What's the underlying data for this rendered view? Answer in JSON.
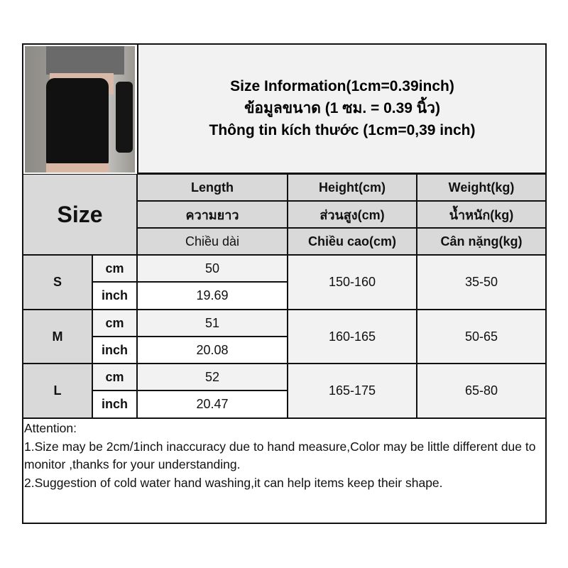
{
  "title": {
    "line1": "Size Information(1cm=0.39inch)",
    "line2": "ข้อมูลขนาด (1 ซม. = 0.39 นิ้ว)",
    "line3": "Thông tin kích thước (1cm=0,39 inch)"
  },
  "header": {
    "size": "Size",
    "columns": [
      {
        "en": "Length",
        "th": "ความยาว",
        "vi": "Chiều dài"
      },
      {
        "en": "Height(cm)",
        "th": "ส่วนสูง(cm)",
        "vi": "Chiều cao(cm)"
      },
      {
        "en": "Weight(kg)",
        "th": "น้ำหนัก(kg)",
        "vi": "Cân nặng(kg)"
      }
    ]
  },
  "rows": [
    {
      "size": "S",
      "cm_label": "cm",
      "inch_label": "inch",
      "length_cm": "50",
      "length_inch": "19.69",
      "height": "150-160",
      "weight": "35-50"
    },
    {
      "size": "M",
      "cm_label": "cm",
      "inch_label": "inch",
      "length_cm": "51",
      "length_inch": "20.08",
      "height": "160-165",
      "weight": "50-65"
    },
    {
      "size": "L",
      "cm_label": "cm",
      "inch_label": "inch",
      "length_cm": "52",
      "length_inch": "20.47",
      "height": "165-175",
      "weight": "65-80"
    }
  ],
  "attention": {
    "heading": "Attention:",
    "note1": "1.Size may be 2cm/1inch inaccuracy due to hand measure,Color may be little different due to monitor ,thanks for your understanding.",
    "note2": "2.Suggestion of cold water hand washing,it can help items keep their shape."
  },
  "colors": {
    "header_bg": "#d9d9d9",
    "light_bg": "#f2f2f2",
    "border": "#111111"
  }
}
